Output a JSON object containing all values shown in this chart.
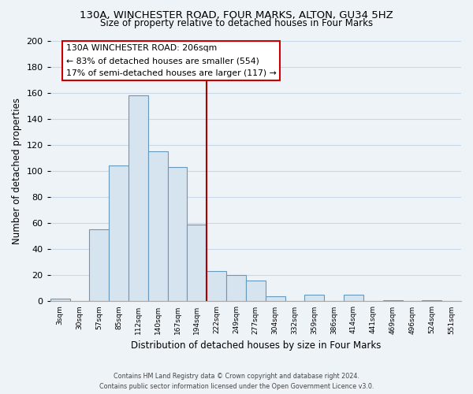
{
  "title1": "130A, WINCHESTER ROAD, FOUR MARKS, ALTON, GU34 5HZ",
  "title2": "Size of property relative to detached houses in Four Marks",
  "xlabel": "Distribution of detached houses by size in Four Marks",
  "ylabel": "Number of detached properties",
  "bin_labels": [
    "3sqm",
    "30sqm",
    "57sqm",
    "85sqm",
    "112sqm",
    "140sqm",
    "167sqm",
    "194sqm",
    "222sqm",
    "249sqm",
    "277sqm",
    "304sqm",
    "332sqm",
    "359sqm",
    "386sqm",
    "414sqm",
    "441sqm",
    "469sqm",
    "496sqm",
    "524sqm",
    "551sqm"
  ],
  "bar_heights": [
    2,
    0,
    55,
    104,
    158,
    115,
    103,
    59,
    23,
    20,
    16,
    4,
    0,
    5,
    0,
    5,
    0,
    1,
    0,
    1,
    0
  ],
  "bar_color": "#d6e4f0",
  "bar_edge_color": "#6699bb",
  "vline_color": "#aa0000",
  "annotation_title": "130A WINCHESTER ROAD: 206sqm",
  "annotation_line1": "← 83% of detached houses are smaller (554)",
  "annotation_line2": "17% of semi-detached houses are larger (117) →",
  "annotation_box_facecolor": "#ffffff",
  "annotation_box_edgecolor": "#cc0000",
  "ylim": [
    0,
    200
  ],
  "yticks": [
    0,
    20,
    40,
    60,
    80,
    100,
    120,
    140,
    160,
    180,
    200
  ],
  "grid_color": "#c8d8e8",
  "plot_bg_color": "#eef3f8",
  "fig_bg_color": "#eef3f8",
  "footer1": "Contains HM Land Registry data © Crown copyright and database right 2024.",
  "footer2": "Contains public sector information licensed under the Open Government Licence v3.0.",
  "vline_x_index": 7.5,
  "title1_fontsize": 9.5,
  "title2_fontsize": 8.5
}
